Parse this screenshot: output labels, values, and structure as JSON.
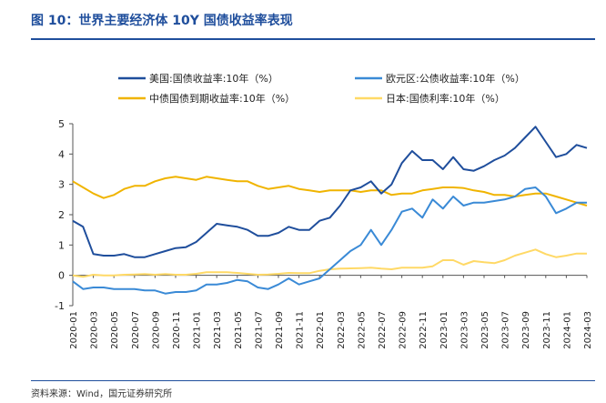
{
  "figure": {
    "title": "图 10：世界主要经济体 10Y 国债收益率表现",
    "source": "资料来源：Wind，国元证券研究所"
  },
  "chart_data": {
    "type": "line",
    "title": "",
    "xlabel": "",
    "ylabel": "",
    "ylim": [
      -1,
      5
    ],
    "yticks": [
      -1,
      0,
      1,
      2,
      3,
      4,
      5
    ],
    "x_ticks": [
      "2020-01",
      "2020-03",
      "2020-05",
      "2020-07",
      "2020-09",
      "2020-11",
      "2021-01",
      "2021-03",
      "2021-05",
      "2021-07",
      "2021-09",
      "2021-11",
      "2022-01",
      "2022-03",
      "2022-05",
      "2022-07",
      "2022-09",
      "2022-11",
      "2023-01",
      "2023-03",
      "2023-05",
      "2023-07",
      "2023-09",
      "2023-11",
      "2024-01",
      "2024-03"
    ],
    "legend_position": "top",
    "grid": false,
    "x": [
      "2020-01",
      "2020-02",
      "2020-03",
      "2020-04",
      "2020-05",
      "2020-06",
      "2020-07",
      "2020-08",
      "2020-09",
      "2020-10",
      "2020-11",
      "2020-12",
      "2021-01",
      "2021-02",
      "2021-03",
      "2021-04",
      "2021-05",
      "2021-06",
      "2021-07",
      "2021-08",
      "2021-09",
      "2021-10",
      "2021-11",
      "2021-12",
      "2022-01",
      "2022-02",
      "2022-03",
      "2022-04",
      "2022-05",
      "2022-06",
      "2022-07",
      "2022-08",
      "2022-09",
      "2022-10",
      "2022-11",
      "2022-12",
      "2023-01",
      "2023-02",
      "2023-03",
      "2023-04",
      "2023-05",
      "2023-06",
      "2023-07",
      "2023-08",
      "2023-09",
      "2023-10",
      "2023-11",
      "2023-12",
      "2024-01",
      "2024-02",
      "2024-03"
    ],
    "series": [
      {
        "name": "美国:国债收益率:10年（%）",
        "color": "#1f4e9c",
        "values": [
          1.8,
          1.6,
          0.7,
          0.65,
          0.65,
          0.7,
          0.6,
          0.6,
          0.7,
          0.8,
          0.9,
          0.93,
          1.1,
          1.4,
          1.7,
          1.65,
          1.6,
          1.5,
          1.3,
          1.3,
          1.4,
          1.6,
          1.5,
          1.5,
          1.8,
          1.9,
          2.3,
          2.8,
          2.9,
          3.1,
          2.7,
          3.0,
          3.7,
          4.1,
          3.8,
          3.8,
          3.5,
          3.9,
          3.5,
          3.45,
          3.6,
          3.8,
          3.95,
          4.2,
          4.55,
          4.9,
          4.4,
          3.9,
          4.0,
          4.3,
          4.2
        ]
      },
      {
        "name": "欧元区:公债收益率:10年（%）",
        "color": "#3a8ad6",
        "values": [
          -0.2,
          -0.45,
          -0.4,
          -0.4,
          -0.45,
          -0.45,
          -0.45,
          -0.5,
          -0.5,
          -0.6,
          -0.55,
          -0.55,
          -0.5,
          -0.3,
          -0.3,
          -0.25,
          -0.15,
          -0.2,
          -0.4,
          -0.45,
          -0.3,
          -0.1,
          -0.3,
          -0.2,
          -0.1,
          0.2,
          0.5,
          0.8,
          1.0,
          1.5,
          1.0,
          1.5,
          2.1,
          2.2,
          1.9,
          2.5,
          2.2,
          2.6,
          2.3,
          2.4,
          2.4,
          2.45,
          2.5,
          2.6,
          2.85,
          2.9,
          2.6,
          2.05,
          2.2,
          2.4,
          2.4
        ]
      },
      {
        "name": "中债国债到期收益率:10年（%）",
        "color": "#f0b400",
        "values": [
          3.1,
          2.9,
          2.7,
          2.55,
          2.65,
          2.85,
          2.95,
          2.95,
          3.1,
          3.2,
          3.25,
          3.2,
          3.15,
          3.25,
          3.2,
          3.15,
          3.1,
          3.1,
          2.95,
          2.85,
          2.9,
          2.95,
          2.85,
          2.8,
          2.75,
          2.8,
          2.8,
          2.8,
          2.75,
          2.8,
          2.8,
          2.65,
          2.7,
          2.7,
          2.8,
          2.85,
          2.9,
          2.9,
          2.88,
          2.8,
          2.75,
          2.65,
          2.65,
          2.6,
          2.65,
          2.7,
          2.7,
          2.6,
          2.5,
          2.4,
          2.3
        ]
      },
      {
        "name": "日本:国债利率:10年（%）",
        "color": "#ffd966",
        "values": [
          0.0,
          -0.05,
          0.02,
          0.0,
          0.0,
          0.02,
          0.03,
          0.04,
          0.02,
          0.04,
          0.02,
          0.02,
          0.05,
          0.1,
          0.1,
          0.1,
          0.08,
          0.05,
          0.02,
          0.03,
          0.05,
          0.08,
          0.07,
          0.07,
          0.15,
          0.2,
          0.22,
          0.23,
          0.24,
          0.25,
          0.22,
          0.2,
          0.25,
          0.25,
          0.25,
          0.3,
          0.5,
          0.5,
          0.35,
          0.47,
          0.43,
          0.4,
          0.5,
          0.65,
          0.75,
          0.85,
          0.7,
          0.6,
          0.65,
          0.72,
          0.72
        ]
      }
    ]
  }
}
